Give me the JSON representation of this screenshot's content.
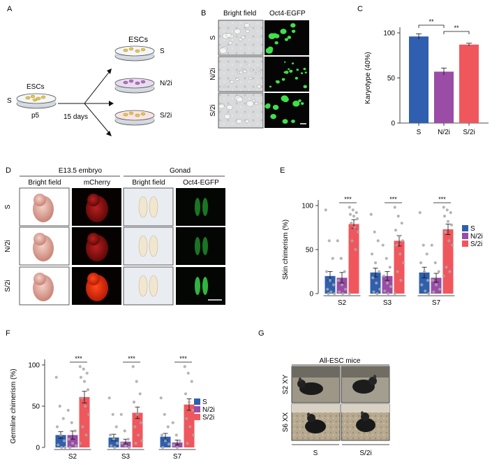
{
  "colors": {
    "S": "#2f5fae",
    "N2i": "#9a4ca6",
    "S2i": "#f0575d",
    "dot": "#a8a8a8",
    "fluor_green": "#3fe04a",
    "mcherry_red": "#c01818"
  },
  "panel_letters": [
    "A",
    "B",
    "C",
    "D",
    "E",
    "F",
    "G"
  ],
  "panelA": {
    "top_label": "ESCs",
    "left_label": "ESCs",
    "s_label": "S",
    "passage": "p5",
    "duration": "15 days",
    "out_S": "S",
    "out_N2i": "N/2i",
    "out_S2i": "S/2i"
  },
  "panelB": {
    "col_bright": "Bright field",
    "col_oct4": "Oct4-EGFP",
    "rows": [
      "S",
      "N/2i",
      "S/2i"
    ]
  },
  "panelD": {
    "group_embryo": "E13.5 embryo",
    "group_gonad": "Gonad",
    "cols": [
      "Bright field",
      "mCherry",
      "Bright field",
      "Oct4-EGFP"
    ],
    "rows": [
      "S",
      "N/2i",
      "S/2i"
    ]
  },
  "panelG": {
    "title": "All-ESC mice",
    "rows": [
      "S2 XY",
      "S6 XX"
    ],
    "cols": [
      "S",
      "S/2i"
    ]
  },
  "chart_data": [
    {
      "id": "C",
      "type": "bar",
      "ylabel": "Karyotype (40%)",
      "ylim": [
        0,
        100
      ],
      "yticks": [
        0,
        50,
        100
      ],
      "categories": [
        "S",
        "N/2i",
        "S/2i"
      ],
      "values": [
        96,
        57,
        87
      ],
      "errors": [
        3,
        4,
        1.5
      ],
      "significance": [
        {
          "from": 0,
          "to": 1,
          "label": "**"
        },
        {
          "from": 1,
          "to": 2,
          "label": "**"
        }
      ]
    },
    {
      "id": "E",
      "type": "bar",
      "ylabel": "Skin chimerism (%)",
      "ylim": [
        0,
        100
      ],
      "yticks": [
        0,
        50,
        100
      ],
      "categories": [
        "S2",
        "S3",
        "S7"
      ],
      "legend": [
        "S",
        "N/2i",
        "S/2i"
      ],
      "series": [
        {
          "name": "S",
          "values": [
            20,
            24,
            24
          ],
          "errors": [
            5,
            5,
            6
          ],
          "points": [
            [
              95,
              60,
              40,
              25,
              15,
              10,
              5,
              2,
              0,
              0
            ],
            [
              90,
              70,
              60,
              45,
              35,
              25,
              18,
              12,
              5,
              2,
              0
            ],
            [
              92,
              55,
              45,
              35,
              25,
              15,
              10,
              3,
              0
            ]
          ]
        },
        {
          "name": "N/2i",
          "values": [
            18,
            20,
            18
          ],
          "errors": [
            6,
            5,
            5
          ],
          "points": [
            [
              60,
              40,
              25,
              15,
              10,
              5,
              2,
              0
            ],
            [
              55,
              40,
              30,
              20,
              12,
              8,
              3,
              0
            ],
            [
              55,
              35,
              25,
              15,
              10,
              5,
              2
            ]
          ]
        },
        {
          "name": "S/2i",
          "values": [
            79,
            60,
            73
          ],
          "errors": [
            5,
            6,
            6
          ],
          "points": [
            [
              98,
              95,
              92,
              90,
              88,
              85,
              80,
              75,
              70,
              60,
              50,
              0
            ],
            [
              98,
              88,
              80,
              72,
              65,
              60,
              55,
              45,
              35,
              25,
              15,
              0
            ],
            [
              98,
              95,
              92,
              88,
              82,
              78,
              70,
              60,
              55,
              30,
              25,
              20
            ]
          ]
        }
      ],
      "significance": [
        {
          "group": 0,
          "label": "***"
        },
        {
          "group": 1,
          "label": "***"
        },
        {
          "group": 2,
          "label": "***"
        }
      ]
    },
    {
      "id": "F",
      "type": "bar",
      "ylabel": "Germline chimerism (%)",
      "ylim": [
        0,
        100
      ],
      "yticks": [
        0,
        50,
        100
      ],
      "categories": [
        "S2",
        "S3",
        "S7"
      ],
      "legend": [
        "S",
        "N/2i",
        "S/2i"
      ],
      "series": [
        {
          "name": "S",
          "values": [
            15,
            12,
            13
          ],
          "errors": [
            4,
            4,
            4
          ],
          "points": [
            [
              85,
              50,
              35,
              25,
              15,
              8,
              3,
              0,
              0
            ],
            [
              60,
              40,
              25,
              15,
              10,
              5,
              2,
              0
            ],
            [
              60,
              40,
              25,
              15,
              8,
              4,
              0
            ]
          ]
        },
        {
          "name": "N/2i",
          "values": [
            15,
            7,
            6
          ],
          "errors": [
            5,
            3,
            3
          ],
          "points": [
            [
              45,
              30,
              20,
              10,
              5,
              2,
              0
            ],
            [
              40,
              20,
              10,
              5,
              2,
              0
            ],
            [
              30,
              15,
              8,
              3,
              0
            ]
          ]
        },
        {
          "name": "S/2i",
          "values": [
            61,
            42,
            52
          ],
          "errors": [
            7,
            7,
            7
          ],
          "points": [
            [
              98,
              95,
              90,
              85,
              80,
              70,
              60,
              50,
              40,
              25,
              15,
              5
            ],
            [
              98,
              80,
              65,
              55,
              40,
              30,
              25,
              15,
              8,
              5
            ],
            [
              98,
              90,
              80,
              65,
              55,
              45,
              35,
              25,
              15,
              5
            ]
          ]
        }
      ],
      "significance": [
        {
          "group": 0,
          "label": "***"
        },
        {
          "group": 1,
          "label": "***"
        },
        {
          "group": 2,
          "label": "***"
        }
      ]
    }
  ]
}
